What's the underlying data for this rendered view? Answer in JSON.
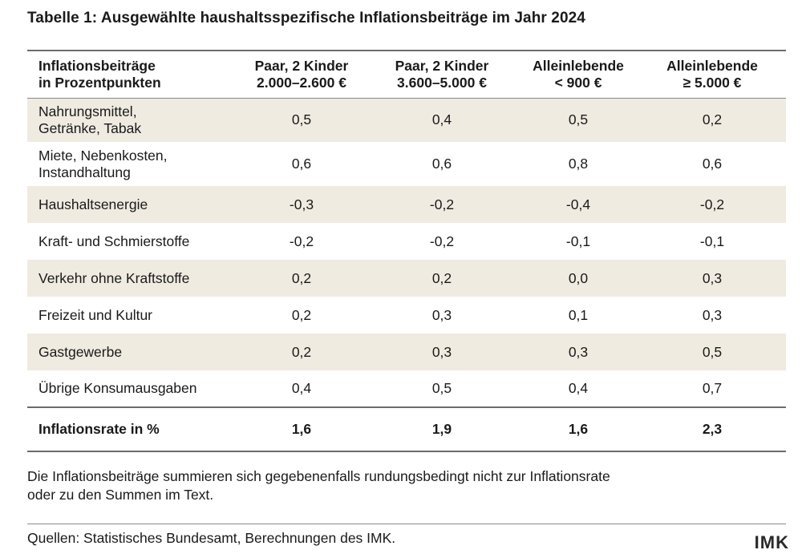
{
  "title": "Tabelle 1: Ausgewählte haushaltsspezifische Inflationsbeiträge im Jahr 2024",
  "table": {
    "header": {
      "label_line1": "Inflationsbeiträge",
      "label_line2": "in Prozentpunkten",
      "columns": [
        {
          "line1": "Paar, 2 Kinder",
          "line2": "2.000–2.600 €"
        },
        {
          "line1": "Paar, 2 Kinder",
          "line2": "3.600–5.000 €"
        },
        {
          "line1": "Alleinlebende",
          "line2": "< 900 €"
        },
        {
          "line1": "Alleinlebende",
          "line2": "≥ 5.000 €"
        }
      ]
    },
    "rows": [
      {
        "label_line1": "Nahrungsmittel,",
        "label_line2": "Getränke, Tabak",
        "values": [
          "0,5",
          "0,4",
          "0,5",
          "0,2"
        ]
      },
      {
        "label_line1": "Miete, Nebenkosten,",
        "label_line2": "Instandhaltung",
        "values": [
          "0,6",
          "0,6",
          "0,8",
          "0,6"
        ]
      },
      {
        "label": "Haushaltsenergie",
        "values": [
          "-0,3",
          "-0,2",
          "-0,4",
          "-0,2"
        ]
      },
      {
        "label": "Kraft- und Schmierstoffe",
        "values": [
          "-0,2",
          "-0,2",
          "-0,1",
          "-0,1"
        ]
      },
      {
        "label": "Verkehr ohne Kraftstoffe",
        "values": [
          "0,2",
          "0,2",
          "0,0",
          "0,3"
        ]
      },
      {
        "label": "Freizeit und Kultur",
        "values": [
          "0,2",
          "0,3",
          "0,1",
          "0,3"
        ]
      },
      {
        "label": "Gastgewerbe",
        "values": [
          "0,2",
          "0,3",
          "0,3",
          "0,5"
        ]
      },
      {
        "label": "Übrige Konsumausgaben",
        "values": [
          "0,4",
          "0,5",
          "0,4",
          "0,7"
        ]
      }
    ],
    "total": {
      "label": "Inflationsrate in %",
      "values": [
        "1,6",
        "1,9",
        "1,6",
        "2,3"
      ]
    }
  },
  "note_line1": "Die Inflationsbeiträge summieren sich gegebenenfalls rundungsbedingt nicht zur Inflationsrate",
  "note_line2": "oder zu den Summen im Text.",
  "source": "Quellen: Statistisches Bundesamt, Berechnungen des IMK.",
  "logo_text": "IMK",
  "colors": {
    "row_shade": "#efebe1",
    "rule": "#6b6b6b"
  }
}
